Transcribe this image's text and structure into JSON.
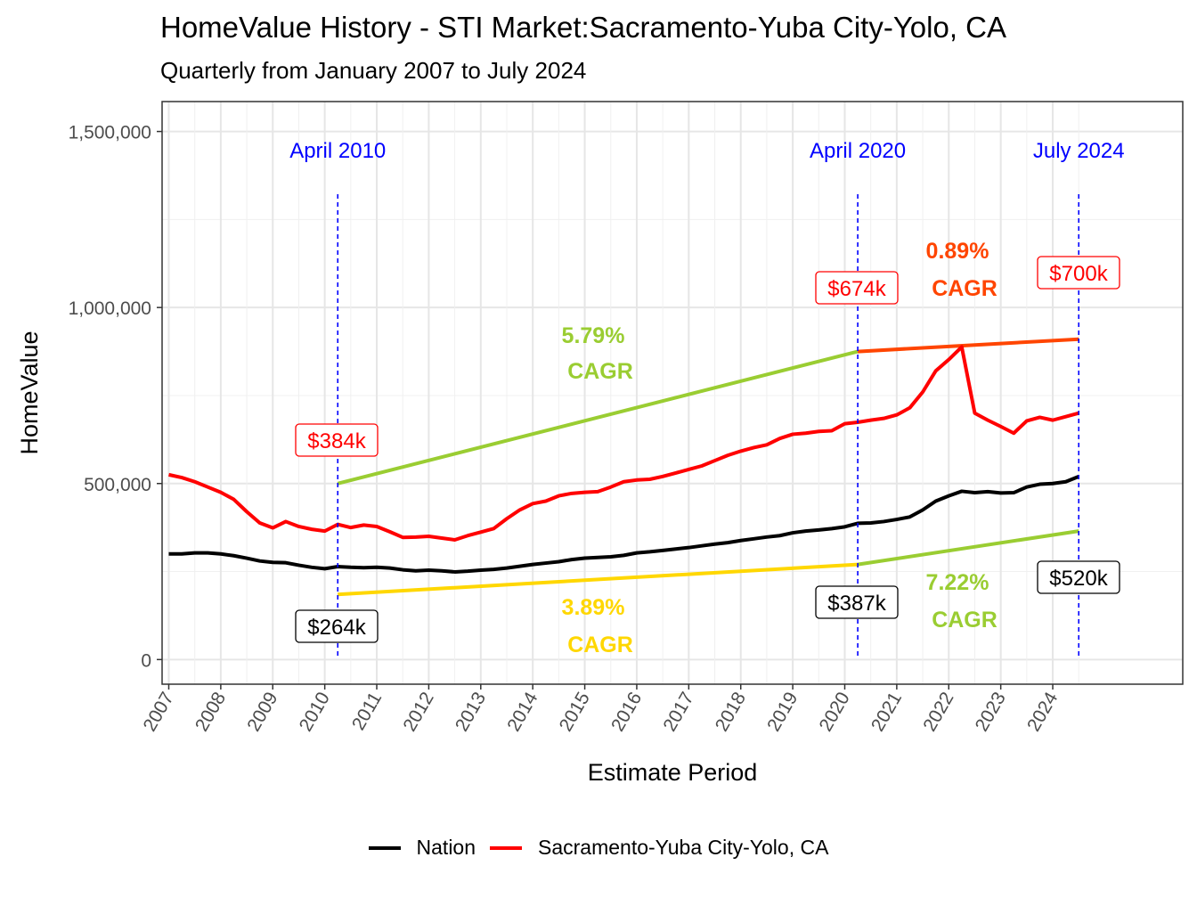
{
  "title": "HomeValue History - STI Market:Sacramento-Yuba City-Yolo, CA",
  "subtitle": "Quarterly from January 2007 to July 2024",
  "chart_data": {
    "type": "line",
    "title": "HomeValue History - STI Market:Sacramento-Yuba City-Yolo, CA",
    "subtitle": "Quarterly from January 2007 to July 2024",
    "xlabel": "Estimate Period",
    "ylabel": "HomeValue",
    "xlim": [
      "2006-11-15",
      "2026-07-01"
    ],
    "ylim": [
      -70000,
      1585000
    ],
    "grid": true,
    "legend_position": "bottom",
    "x_ticks": [
      "2007",
      "2008",
      "2009",
      "2010",
      "2011",
      "2012",
      "2013",
      "2014",
      "2015",
      "2016",
      "2017",
      "2018",
      "2019",
      "2020",
      "2021",
      "2022",
      "2023",
      "2024"
    ],
    "y_ticks": [
      {
        "value": 0,
        "label": "0"
      },
      {
        "value": 500000,
        "label": "500,000"
      },
      {
        "value": 1000000,
        "label": "1,000,000"
      },
      {
        "value": 1500000,
        "label": "1,500,000"
      }
    ],
    "series": [
      {
        "name": "Nation",
        "color": "#000000",
        "x": [
          "2007-01",
          "2007-04",
          "2007-07",
          "2007-10",
          "2008-01",
          "2008-04",
          "2008-07",
          "2008-10",
          "2009-01",
          "2009-04",
          "2009-07",
          "2009-10",
          "2010-01",
          "2010-04",
          "2010-07",
          "2010-10",
          "2011-01",
          "2011-04",
          "2011-07",
          "2011-10",
          "2012-01",
          "2012-04",
          "2012-07",
          "2012-10",
          "2013-01",
          "2013-04",
          "2013-07",
          "2013-10",
          "2014-01",
          "2014-04",
          "2014-07",
          "2014-10",
          "2015-01",
          "2015-04",
          "2015-07",
          "2015-10",
          "2016-01",
          "2016-04",
          "2016-07",
          "2016-10",
          "2017-01",
          "2017-04",
          "2017-07",
          "2017-10",
          "2018-01",
          "2018-04",
          "2018-07",
          "2018-10",
          "2019-01",
          "2019-04",
          "2019-07",
          "2019-10",
          "2020-01",
          "2020-04",
          "2020-07",
          "2020-10",
          "2021-01",
          "2021-04",
          "2021-07",
          "2021-10",
          "2022-01",
          "2022-04",
          "2022-07",
          "2022-10",
          "2023-01",
          "2023-04",
          "2023-07",
          "2023-10",
          "2024-01",
          "2024-04",
          "2024-07"
        ],
        "values": [
          300000,
          300000,
          303000,
          303000,
          300000,
          295000,
          288000,
          280000,
          276000,
          275000,
          268000,
          262000,
          258000,
          264000,
          262000,
          261000,
          262000,
          260000,
          255000,
          252000,
          254000,
          252000,
          249000,
          251000,
          254000,
          256000,
          260000,
          265000,
          270000,
          274000,
          278000,
          284000,
          288000,
          290000,
          292000,
          296000,
          303000,
          306000,
          310000,
          314000,
          318000,
          323000,
          328000,
          332000,
          338000,
          343000,
          348000,
          352000,
          360000,
          365000,
          368000,
          372000,
          377000,
          387000,
          388000,
          392000,
          398000,
          405000,
          425000,
          450000,
          465000,
          478000,
          474000,
          477000,
          473000,
          474000,
          490000,
          498000,
          500000,
          505000,
          520000
        ]
      },
      {
        "name": "Sacramento-Yuba City-Yolo, CA",
        "color": "#ff0000",
        "x": [
          "2007-01",
          "2007-04",
          "2007-07",
          "2007-10",
          "2008-01",
          "2008-04",
          "2008-07",
          "2008-10",
          "2009-01",
          "2009-04",
          "2009-07",
          "2009-10",
          "2010-01",
          "2010-04",
          "2010-07",
          "2010-10",
          "2011-01",
          "2011-04",
          "2011-07",
          "2011-10",
          "2012-01",
          "2012-04",
          "2012-07",
          "2012-10",
          "2013-01",
          "2013-04",
          "2013-07",
          "2013-10",
          "2014-01",
          "2014-04",
          "2014-07",
          "2014-10",
          "2015-01",
          "2015-04",
          "2015-07",
          "2015-10",
          "2016-01",
          "2016-04",
          "2016-07",
          "2016-10",
          "2017-01",
          "2017-04",
          "2017-07",
          "2017-10",
          "2018-01",
          "2018-04",
          "2018-07",
          "2018-10",
          "2019-01",
          "2019-04",
          "2019-07",
          "2019-10",
          "2020-01",
          "2020-04",
          "2020-07",
          "2020-10",
          "2021-01",
          "2021-04",
          "2021-07",
          "2021-10",
          "2022-01",
          "2022-04",
          "2022-07",
          "2022-10",
          "2023-01",
          "2023-04",
          "2023-07",
          "2023-10",
          "2024-01",
          "2024-04",
          "2024-07"
        ],
        "values": [
          525000,
          517000,
          505000,
          490000,
          475000,
          455000,
          420000,
          388000,
          374000,
          392000,
          378000,
          370000,
          365000,
          384000,
          375000,
          382000,
          378000,
          363000,
          347000,
          348000,
          350000,
          345000,
          340000,
          352000,
          362000,
          372000,
          400000,
          425000,
          443000,
          450000,
          465000,
          472000,
          475000,
          477000,
          490000,
          505000,
          510000,
          512000,
          520000,
          530000,
          540000,
          550000,
          565000,
          580000,
          592000,
          602000,
          610000,
          628000,
          640000,
          643000,
          648000,
          650000,
          670000,
          674000,
          680000,
          685000,
          695000,
          715000,
          760000,
          820000,
          852000,
          888000,
          700000,
          680000,
          662000,
          643000,
          678000,
          688000,
          680000,
          690000,
          700000
        ]
      }
    ],
    "events": [
      {
        "label": "April 2010",
        "x": "2010-04"
      },
      {
        "label": "April 2020",
        "x": "2020-04"
      },
      {
        "label": "July 2024",
        "x": "2024-07"
      }
    ],
    "cagr_lines": [
      {
        "label": "5.79%",
        "label2": "CAGR",
        "color": "#9acd32",
        "points": [
          [
            "2010-04",
            500000
          ],
          [
            "2020-04",
            875000
          ]
        ]
      },
      {
        "label": "0.89%",
        "label2": "CAGR",
        "color": "#ff4500",
        "points": [
          [
            "2020-04",
            875000
          ],
          [
            "2024-07",
            910000
          ]
        ]
      },
      {
        "label": "3.89%",
        "label2": "CAGR",
        "color": "#ffd700",
        "points": [
          [
            "2010-04",
            185000
          ],
          [
            "2020-04",
            270000
          ]
        ]
      },
      {
        "label": "7.22%",
        "label2": "CAGR",
        "color": "#9acd32",
        "points": [
          [
            "2020-04",
            270000
          ],
          [
            "2024-07",
            365000
          ]
        ]
      }
    ],
    "value_labels": [
      {
        "text": "$384k",
        "series": "Sacramento-Yuba City-Yolo, CA",
        "color": "#ff0000"
      },
      {
        "text": "$674k",
        "series": "Sacramento-Yuba City-Yolo, CA",
        "color": "#ff0000"
      },
      {
        "text": "$700k",
        "series": "Sacramento-Yuba City-Yolo, CA",
        "color": "#ff0000"
      },
      {
        "text": "$264k",
        "series": "Nation",
        "color": "#000000"
      },
      {
        "text": "$387k",
        "series": "Nation",
        "color": "#000000"
      },
      {
        "text": "$520k",
        "series": "Nation",
        "color": "#000000"
      }
    ]
  }
}
